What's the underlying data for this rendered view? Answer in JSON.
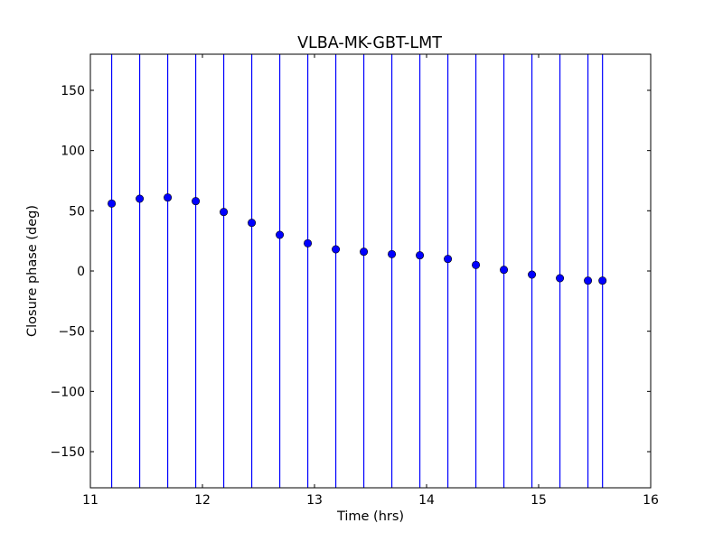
{
  "chart_data": {
    "type": "scatter",
    "title": "VLBA-MK-GBT-LMT",
    "xlabel": "Time (hrs)",
    "ylabel": "Closure phase (deg)",
    "xlim": [
      11,
      16
    ],
    "ylim": [
      -180,
      180
    ],
    "xticks": [
      11,
      12,
      13,
      14,
      15,
      16
    ],
    "yticks": [
      -150,
      -100,
      -50,
      0,
      50,
      100,
      150
    ],
    "xtick_labels": [
      "11",
      "12",
      "13",
      "14",
      "15",
      "16"
    ],
    "ytick_labels": [
      "−150",
      "−100",
      "−50",
      "0",
      "50",
      "100",
      "150"
    ],
    "grid": false,
    "series": [
      {
        "x": [
          11.19,
          11.44,
          11.69,
          11.94,
          12.19,
          12.44,
          12.69,
          12.94,
          13.19,
          13.44,
          13.69,
          13.94,
          14.19,
          14.44,
          14.69,
          14.94,
          15.19,
          15.44,
          15.57
        ],
        "y": [
          56,
          60,
          61,
          58,
          49,
          40,
          30,
          23,
          18,
          16,
          14,
          13,
          10,
          5,
          1,
          -3,
          -6,
          -8,
          -8
        ],
        "yerr_lower": [
          -180,
          -180,
          -180,
          -180,
          -180,
          -180,
          -180,
          -180,
          -180,
          -180,
          -180,
          -180,
          -180,
          -180,
          -180,
          -180,
          -180,
          -180,
          -180
        ],
        "yerr_upper": [
          180,
          180,
          180,
          180,
          180,
          180,
          180,
          180,
          180,
          180,
          180,
          180,
          180,
          180,
          180,
          180,
          180,
          180,
          180
        ]
      }
    ],
    "colors": {
      "marker": "#0000ff",
      "errorbar": "#0000ff",
      "axes": "#000000"
    }
  }
}
